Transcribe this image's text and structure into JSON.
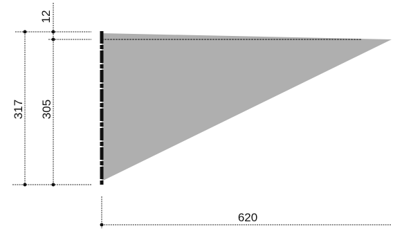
{
  "dimensions": {
    "overall_height": "317",
    "inner_height": "305",
    "offset": "12",
    "width": "620"
  },
  "colors": {
    "sail_fill": "#ababab",
    "line": "#222222",
    "background": "#ffffff"
  }
}
